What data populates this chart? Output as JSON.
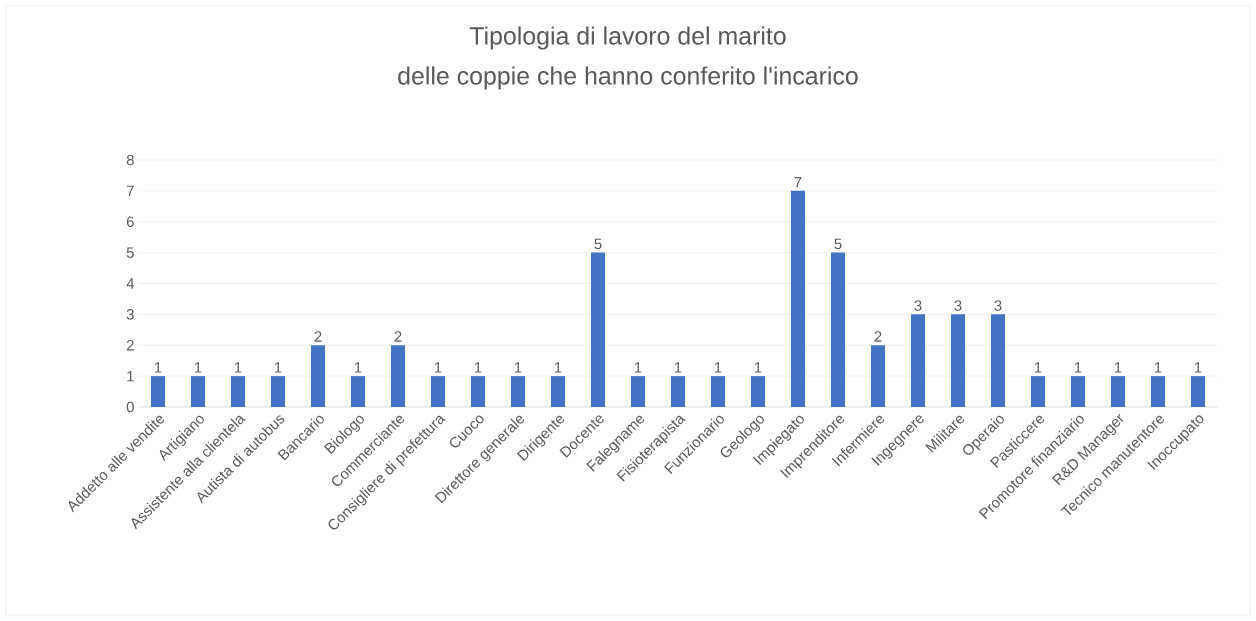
{
  "chart_data": {
    "type": "bar",
    "title": "Tipologia di lavoro del marito",
    "subtitle": "delle coppie che hanno conferito l'incarico",
    "categories": [
      "Addetto alle vendite",
      "Artigiano",
      "Assistente alla clientela",
      "Autista di autobus",
      "Bancario",
      "Biologo",
      "Commerciante",
      "Consigliere di prefettura",
      "Cuoco",
      "Direttore generale",
      "Dirigente",
      "Docente",
      "Falegname",
      "Fisioterapista",
      "Funzionario",
      "Geologo",
      "Impiegato",
      "Imprenditore",
      "Infermiere",
      "Ingegnere",
      "Militare",
      "Operaio",
      "Pasticcere",
      "Promotore finanziario",
      "R&D Manager",
      "Tecnico manutentore",
      "Inoccupato"
    ],
    "values": [
      1,
      1,
      1,
      1,
      2,
      1,
      2,
      1,
      1,
      1,
      1,
      5,
      1,
      1,
      1,
      1,
      7,
      5,
      2,
      3,
      3,
      3,
      1,
      1,
      1,
      1,
      1
    ],
    "color": "#4472c4",
    "ylim": [
      0,
      8
    ],
    "yticks": [
      0,
      1,
      2,
      3,
      4,
      5,
      6,
      7,
      8
    ],
    "grid": "y",
    "data_labels": true
  }
}
